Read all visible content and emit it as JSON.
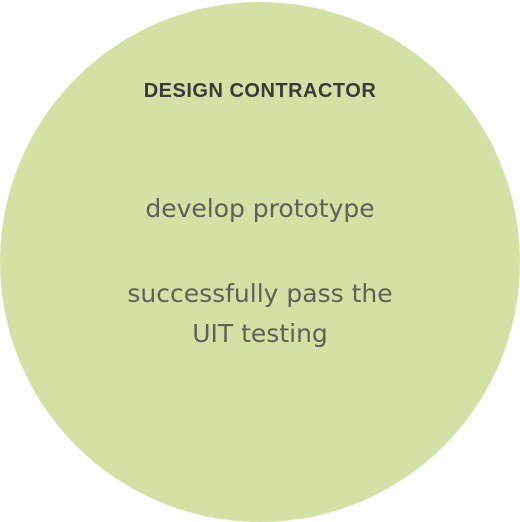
{
  "circle": {
    "title": "DESIGN CONTRACTOR",
    "lines": [
      "develop prototype",
      "successfully pass the",
      "UIT testing"
    ]
  },
  "colors": {
    "fill": "#d3e2a4",
    "title": "#3a3a3a",
    "text": "#5f6058"
  }
}
